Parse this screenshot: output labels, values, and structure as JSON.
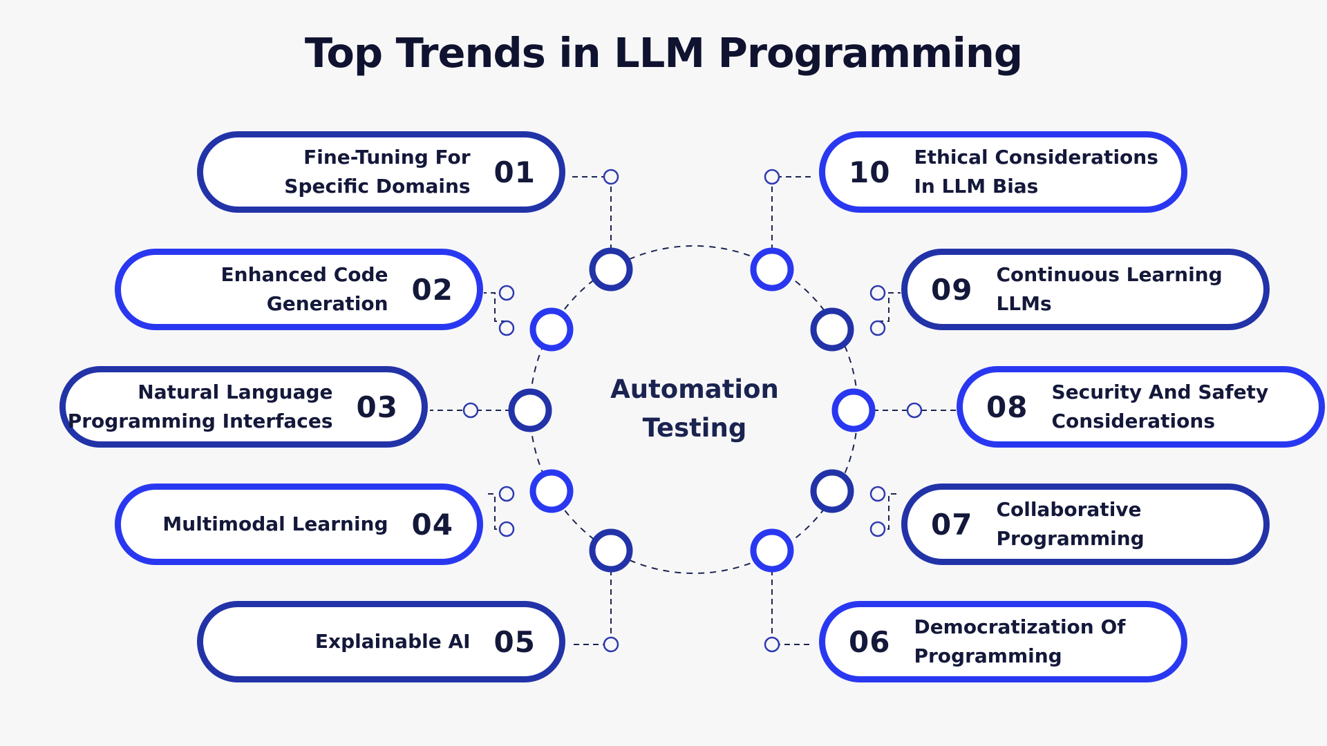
{
  "title": "Top Trends in LLM Programming",
  "center": {
    "line1": "Automation",
    "line2": "Testing"
  },
  "colors": {
    "dark_border": "#2233a8",
    "bright_border": "#2938f0",
    "text": "#14183a",
    "background": "#f7f7f8"
  },
  "trends": [
    {
      "num": "01",
      "line1": "Fine-Tuning For",
      "line2": "Specific Domains"
    },
    {
      "num": "02",
      "line1": "Enhanced Code",
      "line2": "Generation"
    },
    {
      "num": "03",
      "line1": "Natural Language",
      "line2": "Programming Interfaces"
    },
    {
      "num": "04",
      "line1": "Multimodal Learning",
      "line2": ""
    },
    {
      "num": "05",
      "line1": "Explainable AI",
      "line2": ""
    },
    {
      "num": "06",
      "line1": "Democratization Of",
      "line2": "Programming"
    },
    {
      "num": "07",
      "line1": "Collaborative",
      "line2": "Programming"
    },
    {
      "num": "08",
      "line1": "Security And Safety",
      "line2": "Considerations"
    },
    {
      "num": "09",
      "line1": "Continuous Learning",
      "line2": "LLMs"
    },
    {
      "num": "10",
      "line1": "Ethical Considerations",
      "line2": "In LLM Bias"
    }
  ]
}
